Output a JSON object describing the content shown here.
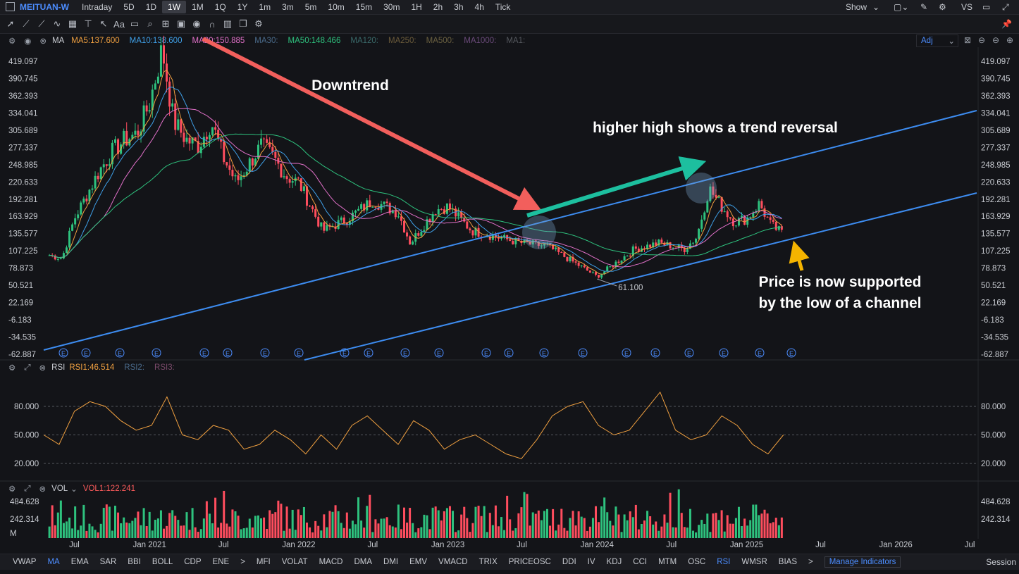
{
  "header": {
    "symbol": "MEITUAN-W",
    "timeframes": [
      "Intraday",
      "5D",
      "1D",
      "1W",
      "1M",
      "1Q",
      "1Y",
      "1m",
      "3m",
      "5m",
      "10m",
      "15m",
      "30m",
      "1H",
      "2h",
      "3h",
      "4h",
      "Tick"
    ],
    "active_timeframe": "1W",
    "show_label": "Show",
    "vs_label": "VS"
  },
  "ma_legend": {
    "name": "MA",
    "items": [
      {
        "label": "MA5:137.600",
        "color": "#f0a040"
      },
      {
        "label": "MA10:138.600",
        "color": "#3fa0e8"
      },
      {
        "label": "MA20:150.885",
        "color": "#e070c8"
      },
      {
        "label": "MA30:",
        "color": "#4a6a8a"
      },
      {
        "label": "MA50:148.466",
        "color": "#2ec27e"
      },
      {
        "label": "MA120:",
        "color": "#3a6a6a"
      },
      {
        "label": "MA250:",
        "color": "#6a5a3a"
      },
      {
        "label": "MA500:",
        "color": "#6a6040"
      },
      {
        "label": "MA1000:",
        "color": "#6a4a7a"
      },
      {
        "label": "MA1:",
        "color": "#55585e"
      }
    ],
    "adj_label": "Adj"
  },
  "rsi_legend": {
    "name": "RSI",
    "items": [
      {
        "label": "RSI1:46.514",
        "color": "#f0a040"
      },
      {
        "label": "RSI2:",
        "color": "#4a6a8a"
      },
      {
        "label": "RSI3:",
        "color": "#7a4a6a"
      }
    ]
  },
  "vol_legend": {
    "name": "VOL",
    "items": [
      {
        "label": "VOL1:122.241",
        "color": "#ff5c5c"
      }
    ]
  },
  "annotations": {
    "downtrend": "Downtrend",
    "reversal": "higher high shows a trend reversal",
    "support": "Price is now supported by the low of a channel"
  },
  "bottom": {
    "indicators": [
      "VWAP",
      "MA",
      "EMA",
      "SAR",
      "BBI",
      "BOLL",
      "CDP",
      "ENE",
      ">",
      "MFI",
      "VOLAT",
      "MACD",
      "DMA",
      "DMI",
      "EMV",
      "VMACD",
      "TRIX",
      "PRICEOSC",
      "DDI",
      "IV",
      "KDJ",
      "CCI",
      "MTM",
      "OSC",
      "RSI",
      "WMSR",
      "BIAS",
      ">"
    ],
    "active": [
      "MA",
      "RSI"
    ],
    "manage": "Manage Indicators",
    "session": "Session"
  },
  "chart_data": {
    "type": "line",
    "title": "",
    "price_axis_ticks": [
      "419.097",
      "390.745",
      "362.393",
      "334.041",
      "305.689",
      "277.337",
      "248.985",
      "220.633",
      "192.281",
      "163.929",
      "135.577",
      "107.225",
      "78.873",
      "50.521",
      "22.169",
      "-6.183",
      "-34.535",
      "-62.887"
    ],
    "rsi_axis_ticks": [
      "80.000",
      "50.000",
      "20.000"
    ],
    "vol_axis_ticks": [
      "484.628",
      "242.314",
      "M"
    ],
    "x_axis_labels": [
      "Jul",
      "Jan 2021",
      "Jul",
      "Jan 2022",
      "Jul",
      "Jan 2023",
      "Jul",
      "Jan 2024",
      "Jul",
      "Jan 2025",
      "Jul",
      "Jan 2026",
      "Jul"
    ],
    "low_marker": "61.100",
    "earnings_marker": "E",
    "price_series": [
      {
        "date": "2020-05",
        "price": 100
      },
      {
        "date": "2020-06",
        "price": 95
      },
      {
        "date": "2020-07",
        "price": 160
      },
      {
        "date": "2020-08",
        "price": 200
      },
      {
        "date": "2020-09",
        "price": 240
      },
      {
        "date": "2020-10",
        "price": 270
      },
      {
        "date": "2020-11",
        "price": 290
      },
      {
        "date": "2020-12",
        "price": 300
      },
      {
        "date": "2021-01",
        "price": 350
      },
      {
        "date": "2021-02",
        "price": 440
      },
      {
        "date": "2021-03",
        "price": 320
      },
      {
        "date": "2021-04",
        "price": 290
      },
      {
        "date": "2021-05",
        "price": 280
      },
      {
        "date": "2021-06",
        "price": 320
      },
      {
        "date": "2021-07",
        "price": 260
      },
      {
        "date": "2021-08",
        "price": 220
      },
      {
        "date": "2021-09",
        "price": 250
      },
      {
        "date": "2021-10",
        "price": 280
      },
      {
        "date": "2021-11",
        "price": 260
      },
      {
        "date": "2021-12",
        "price": 230
      },
      {
        "date": "2022-01",
        "price": 220
      },
      {
        "date": "2022-03",
        "price": 140
      },
      {
        "date": "2022-05",
        "price": 160
      },
      {
        "date": "2022-07",
        "price": 190
      },
      {
        "date": "2022-09",
        "price": 170
      },
      {
        "date": "2022-10",
        "price": 120
      },
      {
        "date": "2022-12",
        "price": 175
      },
      {
        "date": "2023-01",
        "price": 180
      },
      {
        "date": "2023-03",
        "price": 140
      },
      {
        "date": "2023-05",
        "price": 130
      },
      {
        "date": "2023-07",
        "price": 120
      },
      {
        "date": "2023-09",
        "price": 115
      },
      {
        "date": "2023-11",
        "price": 90
      },
      {
        "date": "2024-01",
        "price": 65
      },
      {
        "date": "2024-02",
        "price": 80
      },
      {
        "date": "2024-04",
        "price": 110
      },
      {
        "date": "2024-06",
        "price": 120
      },
      {
        "date": "2024-08",
        "price": 110
      },
      {
        "date": "2024-09",
        "price": 130
      },
      {
        "date": "2024-10",
        "price": 210
      },
      {
        "date": "2024-11",
        "price": 180
      },
      {
        "date": "2024-12",
        "price": 155
      },
      {
        "date": "2025-01",
        "price": 160
      },
      {
        "date": "2025-02",
        "price": 185
      },
      {
        "date": "2025-03",
        "price": 150
      },
      {
        "date": "2025-04",
        "price": 135
      }
    ],
    "rsi_series": [
      50,
      40,
      75,
      85,
      80,
      65,
      55,
      60,
      90,
      50,
      45,
      60,
      55,
      35,
      40,
      55,
      45,
      30,
      50,
      35,
      60,
      70,
      55,
      40,
      65,
      55,
      35,
      45,
      50,
      40,
      30,
      25,
      45,
      70,
      80,
      85,
      60,
      50,
      55,
      75,
      95,
      55,
      45,
      50,
      70,
      60,
      40,
      30,
      50
    ]
  }
}
